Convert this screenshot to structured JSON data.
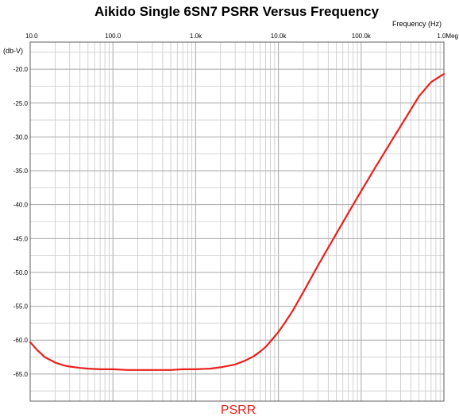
{
  "chart_data": {
    "type": "line",
    "title": "Aikido Single 6SN7 PSRR Versus Frequency",
    "xlabel": "Frequency  (Hz)",
    "ylabel": "(db-V)",
    "x_scale": "log",
    "xlim": [
      10,
      1000000
    ],
    "ylim": [
      -69,
      -16
    ],
    "grid": true,
    "x_ticks": [
      {
        "value": 10,
        "label": "10.0"
      },
      {
        "value": 100,
        "label": "100.0"
      },
      {
        "value": 1000,
        "label": "1.0k"
      },
      {
        "value": 10000,
        "label": "10.0k"
      },
      {
        "value": 100000,
        "label": "100.0k"
      },
      {
        "value": 1000000,
        "label": "1.0Meg"
      }
    ],
    "y_ticks": [
      {
        "value": -20,
        "label": "-20.0"
      },
      {
        "value": -25,
        "label": "-25.0"
      },
      {
        "value": -30,
        "label": "-30.0"
      },
      {
        "value": -35,
        "label": "-35.0"
      },
      {
        "value": -40,
        "label": "-40.0"
      },
      {
        "value": -45,
        "label": "-45.0"
      },
      {
        "value": -50,
        "label": "-50.0"
      },
      {
        "value": -55,
        "label": "-55.0"
      },
      {
        "value": -60,
        "label": "-60.0"
      },
      {
        "value": -65,
        "label": "-65.0"
      }
    ],
    "legend": "bottom",
    "series": [
      {
        "name": "PSRR",
        "color": "#e8211c",
        "x": [
          10,
          12,
          15,
          20,
          25,
          30,
          40,
          50,
          70,
          100,
          150,
          200,
          300,
          500,
          700,
          1000,
          1500,
          2000,
          3000,
          4000,
          5000,
          6000,
          7000,
          8000,
          10000,
          12000,
          15000,
          20000,
          30000,
          50000,
          70000,
          100000,
          150000,
          200000,
          300000,
          500000,
          700000,
          1000000
        ],
        "y": [
          -60.3,
          -61.4,
          -62.5,
          -63.3,
          -63.7,
          -63.9,
          -64.1,
          -64.2,
          -64.3,
          -64.3,
          -64.4,
          -64.4,
          -64.4,
          -64.4,
          -64.3,
          -64.3,
          -64.2,
          -64.0,
          -63.6,
          -63.0,
          -62.4,
          -61.7,
          -61.0,
          -60.2,
          -58.8,
          -57.4,
          -55.6,
          -52.9,
          -49.0,
          -44.3,
          -41.2,
          -38.0,
          -34.4,
          -31.9,
          -28.4,
          -24.0,
          -21.9,
          -20.7
        ]
      }
    ]
  }
}
